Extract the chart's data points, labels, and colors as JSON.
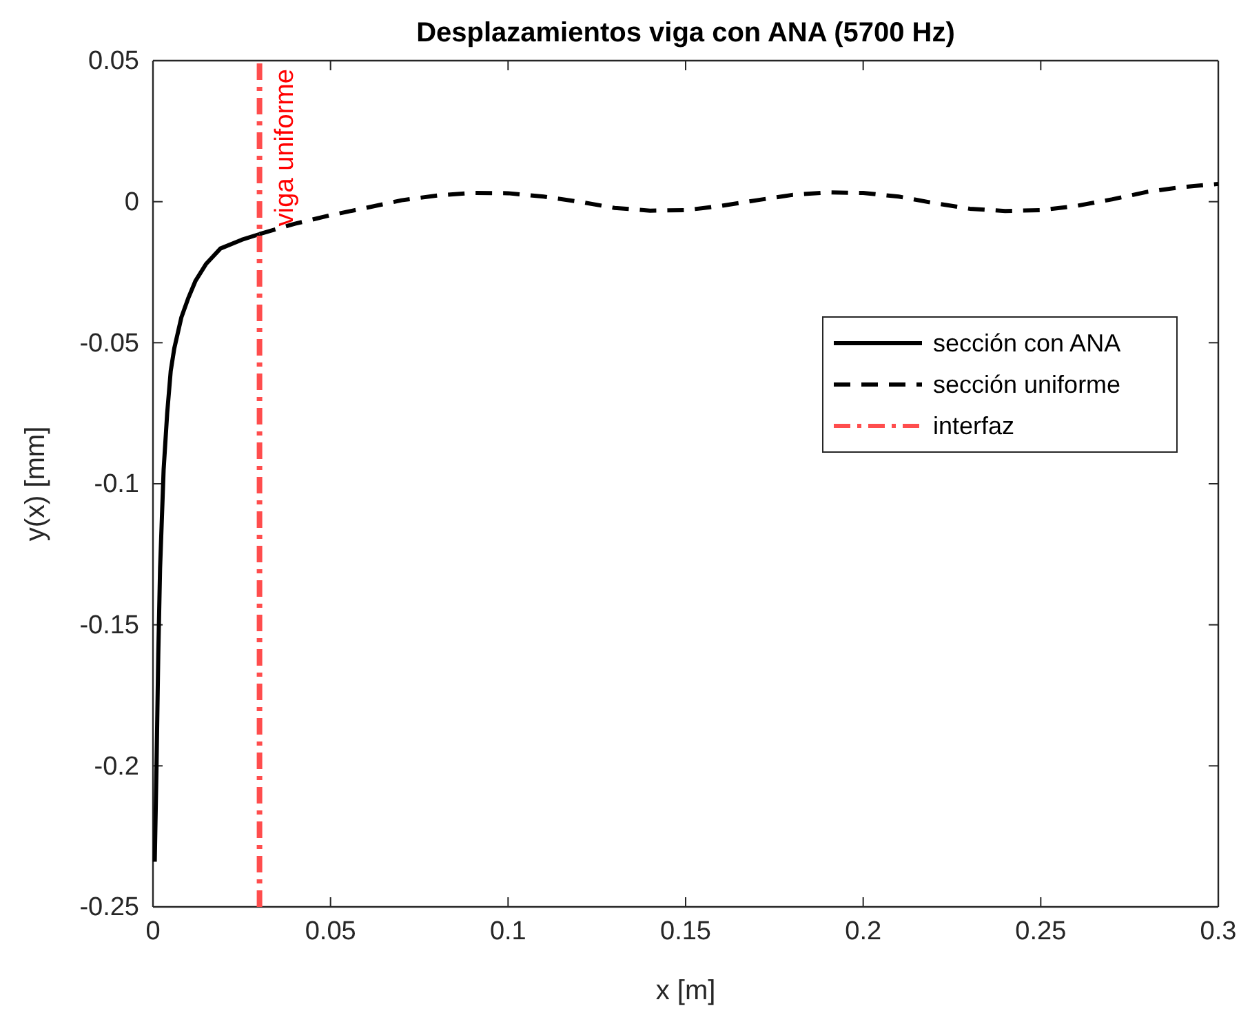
{
  "chart_data": {
    "type": "line",
    "title": "Desplazamientos viga con ANA (5700 Hz)",
    "xlabel": "x [m]",
    "ylabel": "y(x) [mm]",
    "xlim": [
      0,
      0.3
    ],
    "xticks": [
      0,
      0.05,
      0.1,
      0.15,
      0.2,
      0.25,
      0.3
    ],
    "ylim": [
      -0.25,
      0.05
    ],
    "yticks": [
      -0.25,
      -0.2,
      -0.15,
      -0.1,
      -0.05,
      0,
      0.05
    ],
    "grid": false,
    "legend": "right",
    "marker": "none",
    "series": [
      {
        "name": "sección con ANA",
        "color": "#000000",
        "line_style": "solid",
        "x": [
          0.0005,
          0.001,
          0.0015,
          0.002,
          0.003,
          0.004,
          0.005,
          0.006,
          0.008,
          0.01,
          0.012,
          0.015,
          0.019,
          0.025,
          0.03
        ],
        "values": [
          -0.234,
          -0.2,
          -0.16,
          -0.13,
          -0.095,
          -0.075,
          -0.06,
          -0.052,
          -0.041,
          -0.034,
          -0.028,
          -0.022,
          -0.0166,
          -0.0135,
          -0.0115
        ]
      },
      {
        "name": "sección uniforme",
        "color": "#000000",
        "line_style": "dashed",
        "x": [
          0.03,
          0.04,
          0.05,
          0.06,
          0.07,
          0.08,
          0.09,
          0.1,
          0.11,
          0.12,
          0.13,
          0.14,
          0.15,
          0.16,
          0.17,
          0.18,
          0.19,
          0.2,
          0.21,
          0.22,
          0.23,
          0.24,
          0.25,
          0.26,
          0.27,
          0.28,
          0.29,
          0.3
        ],
        "values": [
          -0.0115,
          -0.0078,
          -0.0048,
          -0.0022,
          0.0005,
          0.0022,
          0.0031,
          0.003,
          0.0018,
          0,
          -0.0022,
          -0.0032,
          -0.003,
          -0.0015,
          0.0005,
          0.0024,
          0.0033,
          0.0031,
          0.0018,
          -0.0005,
          -0.0025,
          -0.0033,
          -0.003,
          -0.0015,
          0.0008,
          0.0035,
          0.0052,
          0.0063
        ]
      },
      {
        "name": "interfaz",
        "color": "#ff4d4d",
        "line_style": "dashdot",
        "x": [
          0.03,
          0.03
        ],
        "values": [
          -0.25,
          0.05
        ]
      }
    ],
    "annotations": [
      {
        "text": "viga uniforme",
        "x": 0.03,
        "y": 0.05
      }
    ]
  }
}
